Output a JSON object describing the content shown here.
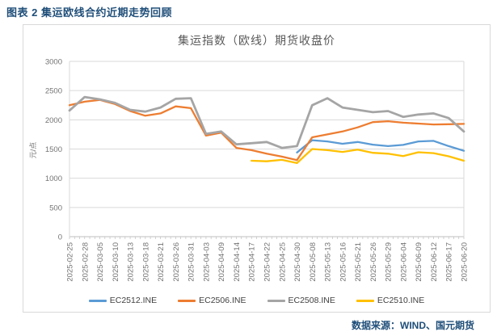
{
  "page": {
    "title": "图表 2 集运欧线合约近期走势回顾",
    "source": "数据来源：WIND、国元期货"
  },
  "chart_data": {
    "type": "line",
    "title": "集运指数（欧线）期货收盘价",
    "ylabel": "元/点",
    "xlabel": "",
    "ylim": [
      0,
      3000
    ],
    "ytick_step": 500,
    "grid": true,
    "legend_position": "bottom",
    "categories": [
      "2025-02-25",
      "2025-02-28",
      "2025-03-05",
      "2025-03-10",
      "2025-03-13",
      "2025-03-18",
      "2025-03-21",
      "2025-03-26",
      "2025-03-31",
      "2025-04-03",
      "2025-04-09",
      "2025-04-14",
      "2025-04-17",
      "2025-04-22",
      "2025-04-25",
      "2025-04-30",
      "2025-05-08",
      "2025-05-13",
      "2025-05-16",
      "2025-05-21",
      "2025-05-26",
      "2025-05-29",
      "2025-06-04",
      "2025-06-09",
      "2025-06-12",
      "2025-06-17",
      "2025-06-20"
    ],
    "series": [
      {
        "name": "EC2512.INE",
        "color": "#5B9BD5",
        "values": [
          null,
          null,
          null,
          null,
          null,
          null,
          null,
          null,
          null,
          null,
          null,
          null,
          null,
          null,
          null,
          1440,
          1650,
          1630,
          1590,
          1620,
          1575,
          1550,
          1570,
          1630,
          1640,
          1550,
          1470
        ]
      },
      {
        "name": "EC2506.INE",
        "color": "#ED7D31",
        "values": [
          2250,
          2310,
          2340,
          2270,
          2150,
          2070,
          2110,
          2230,
          2200,
          1730,
          1780,
          1520,
          1480,
          1420,
          1370,
          1310,
          1700,
          1750,
          1800,
          1870,
          1960,
          1975,
          1950,
          1935,
          1920,
          1925,
          1930
        ]
      },
      {
        "name": "EC2508.INE",
        "color": "#A5A5A5",
        "values": [
          2160,
          2390,
          2350,
          2290,
          2170,
          2140,
          2210,
          2360,
          2370,
          1760,
          1800,
          1580,
          1600,
          1620,
          1520,
          1550,
          2250,
          2370,
          2210,
          2170,
          2130,
          2150,
          2050,
          2090,
          2110,
          2030,
          1800
        ]
      },
      {
        "name": "EC2510.INE",
        "color": "#FFC000",
        "values": [
          null,
          null,
          null,
          null,
          null,
          null,
          null,
          null,
          null,
          null,
          null,
          null,
          1300,
          1290,
          1315,
          1260,
          1500,
          1480,
          1450,
          1490,
          1435,
          1420,
          1380,
          1445,
          1430,
          1375,
          1300
        ]
      }
    ],
    "style": {
      "grid_color": "#D9D9D9",
      "axis_color": "#BFBFBF",
      "tick_label_color": "#737373",
      "title_color": "#595959",
      "accent_color": "#1F4E79"
    }
  }
}
